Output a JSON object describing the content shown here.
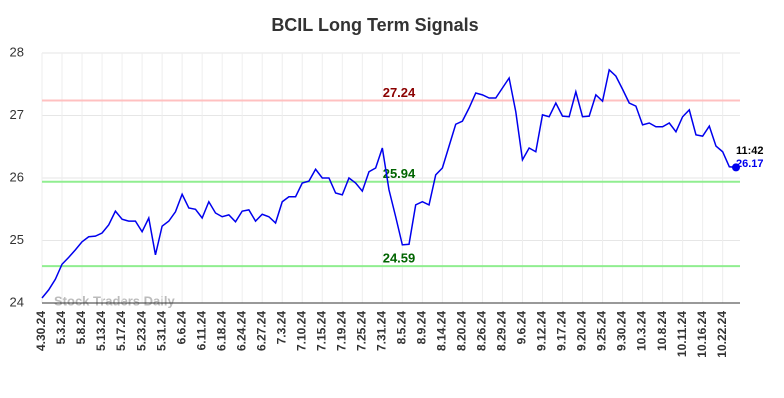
{
  "chart_data": {
    "type": "line",
    "title": "BCIL Long Term Signals",
    "watermark": "Stock Traders Daily",
    "annotation": "11:42",
    "categories": [
      "4.30.24",
      null,
      null,
      "5.3.24",
      null,
      null,
      "5.8.24",
      null,
      null,
      "5.13.24",
      null,
      null,
      "5.17.24",
      null,
      null,
      "5.23.24",
      null,
      null,
      "5.31.24",
      null,
      null,
      "6.6.24",
      null,
      null,
      "6.11.24",
      null,
      null,
      "6.18.24",
      null,
      null,
      "6.24.24",
      null,
      null,
      "6.27.24",
      null,
      null,
      "7.3.24",
      null,
      null,
      "7.10.24",
      null,
      null,
      "7.15.24",
      null,
      null,
      "7.19.24",
      null,
      null,
      "7.25.24",
      null,
      null,
      "7.31.24",
      null,
      null,
      "8.5.24",
      null,
      null,
      "8.9.24",
      null,
      null,
      "8.14.24",
      null,
      null,
      "8.20.24",
      null,
      null,
      "8.26.24",
      null,
      null,
      "8.29.24",
      null,
      null,
      "9.6.24",
      null,
      null,
      "9.12.24",
      null,
      null,
      "9.17.24",
      null,
      null,
      "9.20.24",
      null,
      null,
      "9.25.24",
      null,
      null,
      "9.30.24",
      null,
      null,
      "10.3.24",
      null,
      null,
      "10.8.24",
      null,
      null,
      "10.11.24",
      null,
      null,
      "10.16.24",
      null,
      null,
      "10.22.24",
      null,
      null
    ],
    "series": [
      {
        "name": "BCIL",
        "color": "#0000ee",
        "values": [
          24.08,
          24.21,
          24.38,
          24.62,
          24.73,
          24.85,
          24.98,
          25.06,
          25.07,
          25.12,
          25.25,
          25.47,
          25.34,
          25.31,
          25.31,
          25.14,
          25.36,
          24.77,
          25.23,
          25.31,
          25.46,
          25.74,
          25.52,
          25.5,
          25.36,
          25.62,
          25.44,
          25.38,
          25.41,
          25.3,
          25.47,
          25.49,
          25.31,
          25.42,
          25.38,
          25.28,
          25.62,
          25.7,
          25.7,
          25.92,
          25.95,
          26.14,
          26.0,
          26.0,
          25.76,
          25.73,
          26.0,
          25.92,
          25.79,
          26.1,
          26.16,
          26.48,
          25.81,
          25.38,
          24.93,
          24.94,
          25.57,
          25.62,
          25.57,
          26.05,
          26.16,
          26.51,
          26.86,
          26.91,
          27.12,
          27.36,
          27.33,
          27.28,
          27.28,
          27.44,
          27.6,
          27.06,
          26.29,
          26.48,
          26.42,
          27.01,
          26.98,
          27.2,
          26.99,
          26.98,
          27.38,
          26.98,
          26.99,
          27.33,
          27.23,
          27.73,
          27.63,
          27.42,
          27.2,
          27.15,
          26.85,
          26.88,
          26.82,
          26.82,
          26.88,
          26.74,
          26.98,
          27.09,
          26.69,
          26.67,
          26.83,
          26.51,
          26.42,
          26.18,
          26.17
        ]
      }
    ],
    "hlines": [
      {
        "value": 27.24,
        "color": "#ffc0c0",
        "label_color": "#8b0000"
      },
      {
        "value": 25.94,
        "color": "#90ee90",
        "label_color": "#006400"
      },
      {
        "value": 24.59,
        "color": "#90ee90",
        "label_color": "#006400"
      }
    ],
    "ylim": [
      24,
      28
    ],
    "yticks": [
      24,
      25,
      26,
      27,
      28
    ],
    "grid": true
  }
}
